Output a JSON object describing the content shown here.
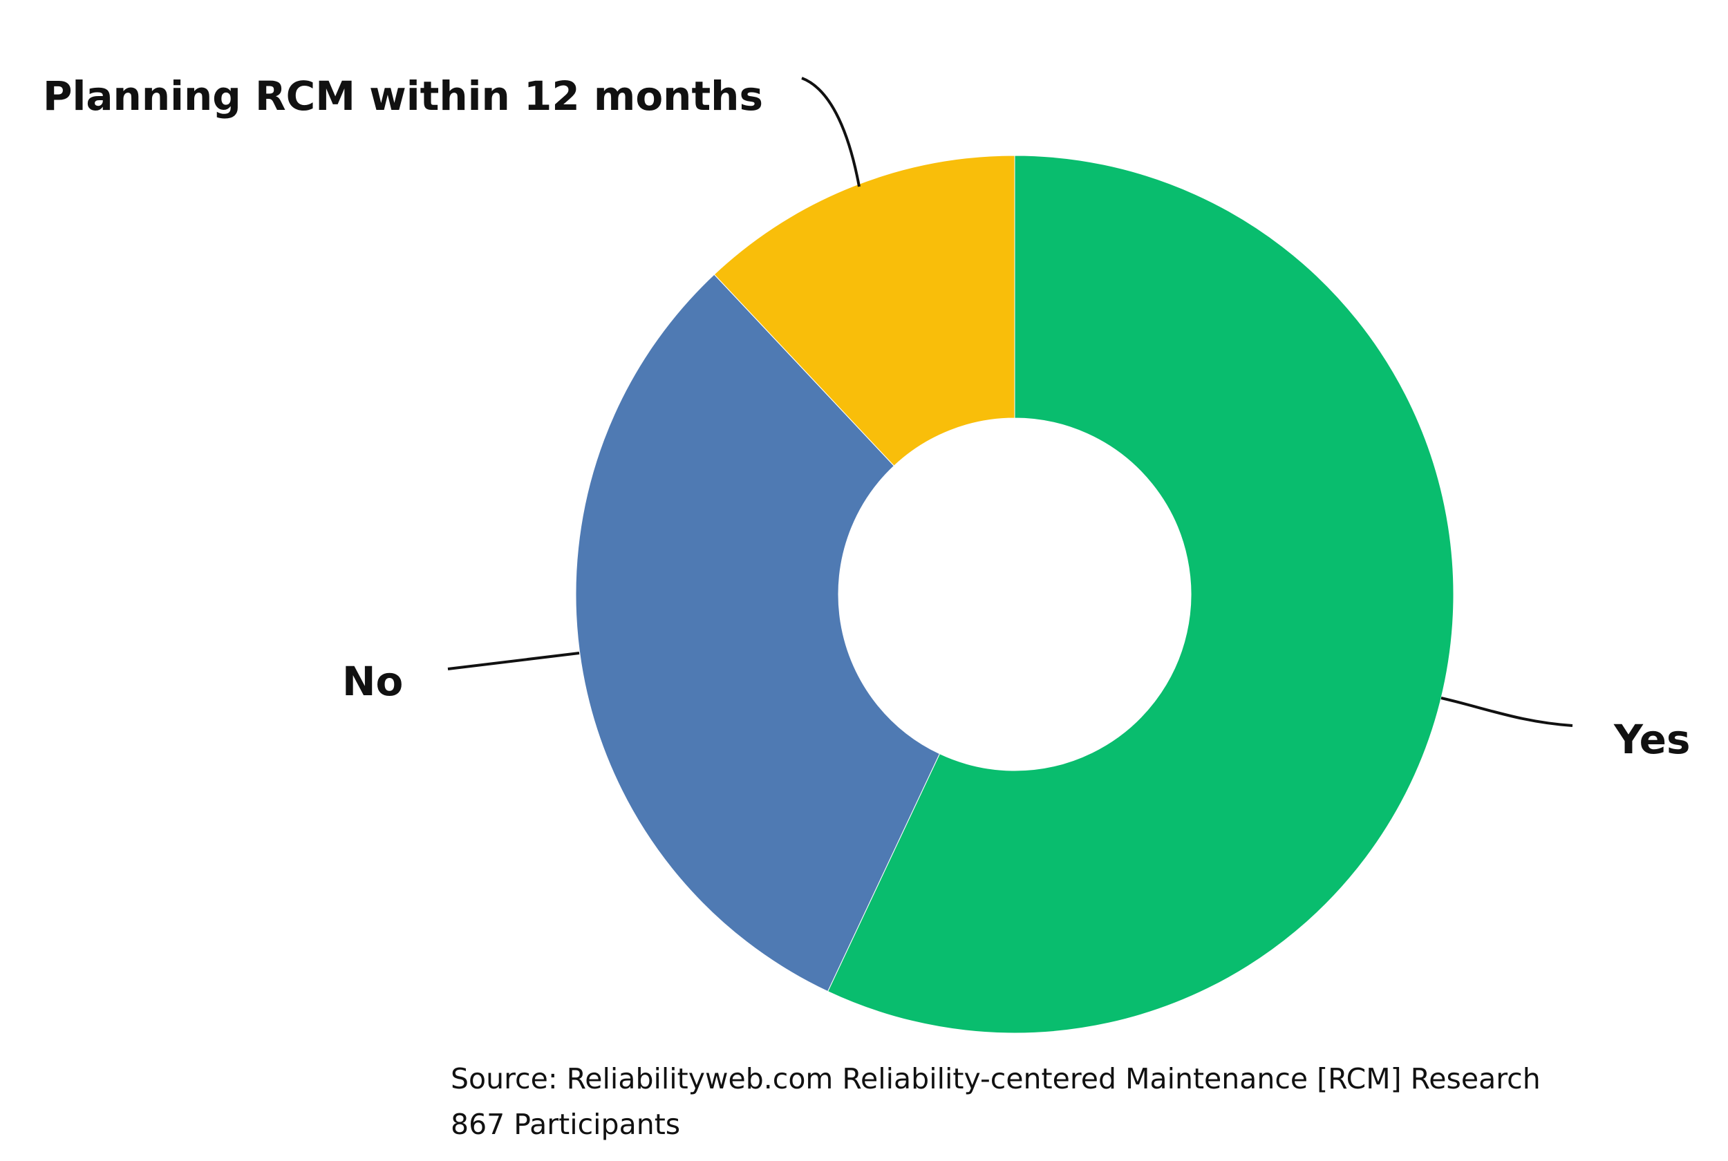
{
  "chart_data": {
    "type": "pie",
    "donut": true,
    "categories": [
      "Yes",
      "No",
      "Planning RCM within 12 months"
    ],
    "values": [
      57,
      31,
      12
    ],
    "colors": [
      "#09BD6E",
      "#4F7AB3",
      "#F9BE0A"
    ],
    "title": "",
    "legend": "none"
  },
  "labels": {
    "yes": "Yes",
    "no": "No",
    "planning": "Planning RCM within 12 months"
  },
  "source": {
    "line1": "Source: Reliabilityweb.com Reliability-centered Maintenance [RCM] Research",
    "line2": "867 Participants"
  }
}
